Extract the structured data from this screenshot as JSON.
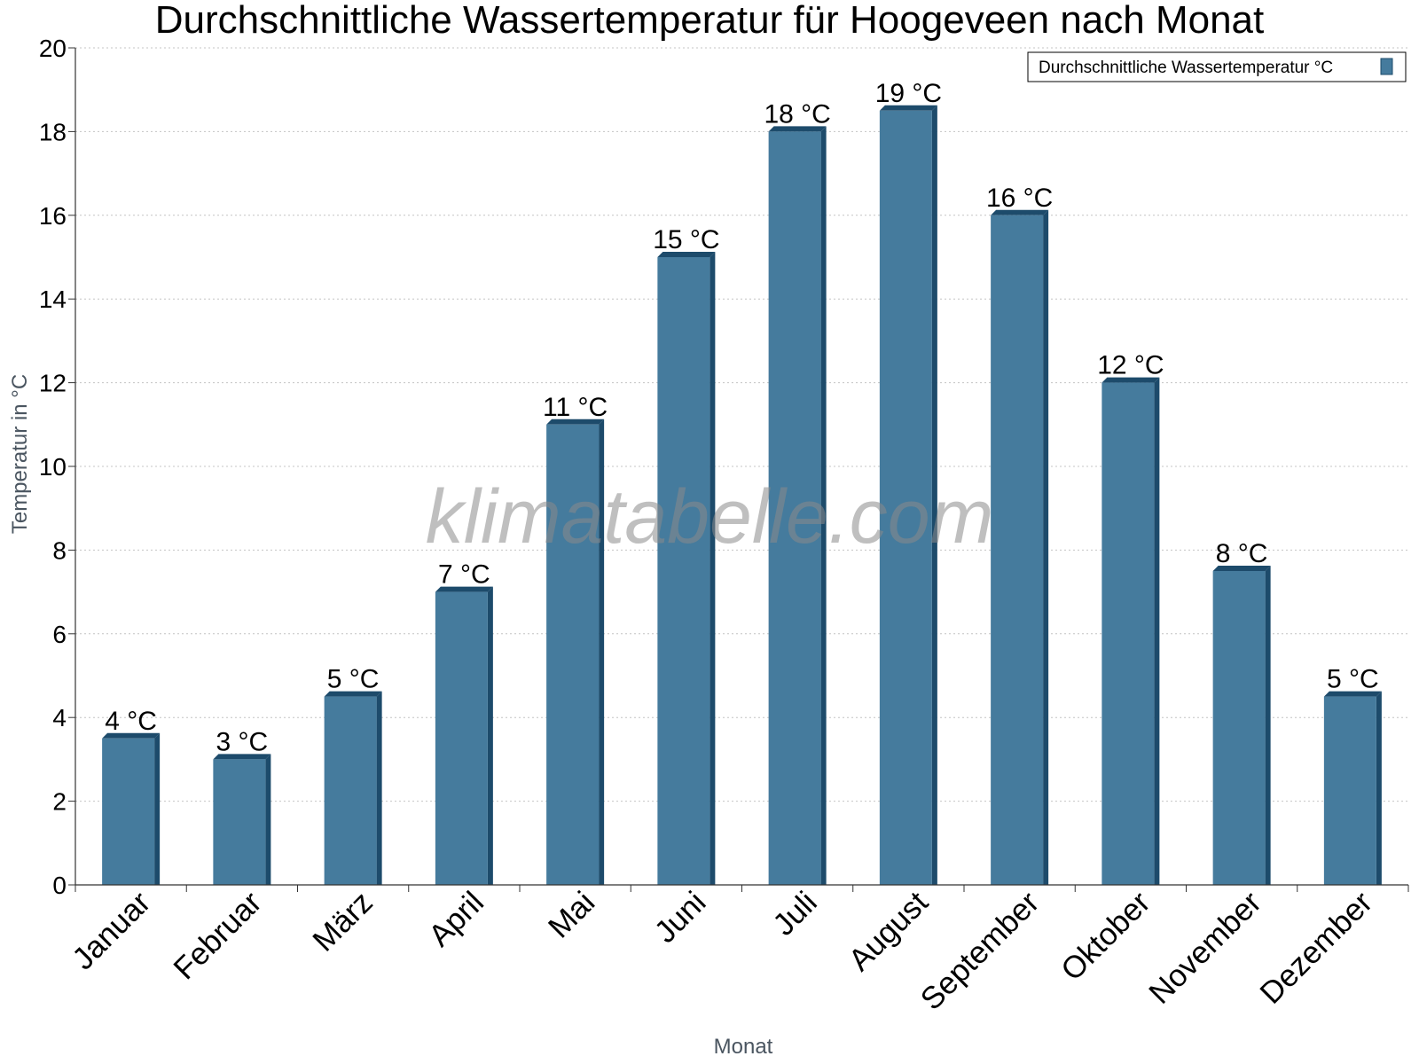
{
  "chart_data": {
    "type": "bar",
    "title": "Durchschnittliche Wassertemperatur für Hoogeveen nach Monat",
    "xlabel": "Monat",
    "ylabel": "Temperatur in °C",
    "ylim": [
      0,
      20
    ],
    "yticks": [
      0,
      2,
      4,
      6,
      8,
      10,
      12,
      14,
      16,
      18,
      20
    ],
    "grid": true,
    "legend_position": "top-right",
    "categories": [
      "Januar",
      "Februar",
      "März",
      "April",
      "Mai",
      "Juni",
      "Juli",
      "August",
      "September",
      "Oktober",
      "November",
      "Dezember"
    ],
    "series": [
      {
        "name": "Durchschnittliche Wassertemperatur °C",
        "values": [
          3.5,
          3.0,
          4.5,
          7.0,
          11.0,
          15.0,
          18.0,
          18.5,
          16.0,
          12.0,
          7.5,
          4.5
        ],
        "labels": [
          "4 °C",
          "3 °C",
          "5 °C",
          "7 °C",
          "11 °C",
          "15 °C",
          "18 °C",
          "19 °C",
          "16 °C",
          "12 °C",
          "8 °C",
          "5 °C"
        ],
        "color": "#457b9d",
        "edge_color": "#1d4b6b"
      }
    ],
    "watermark": "klimatabelle.com"
  }
}
